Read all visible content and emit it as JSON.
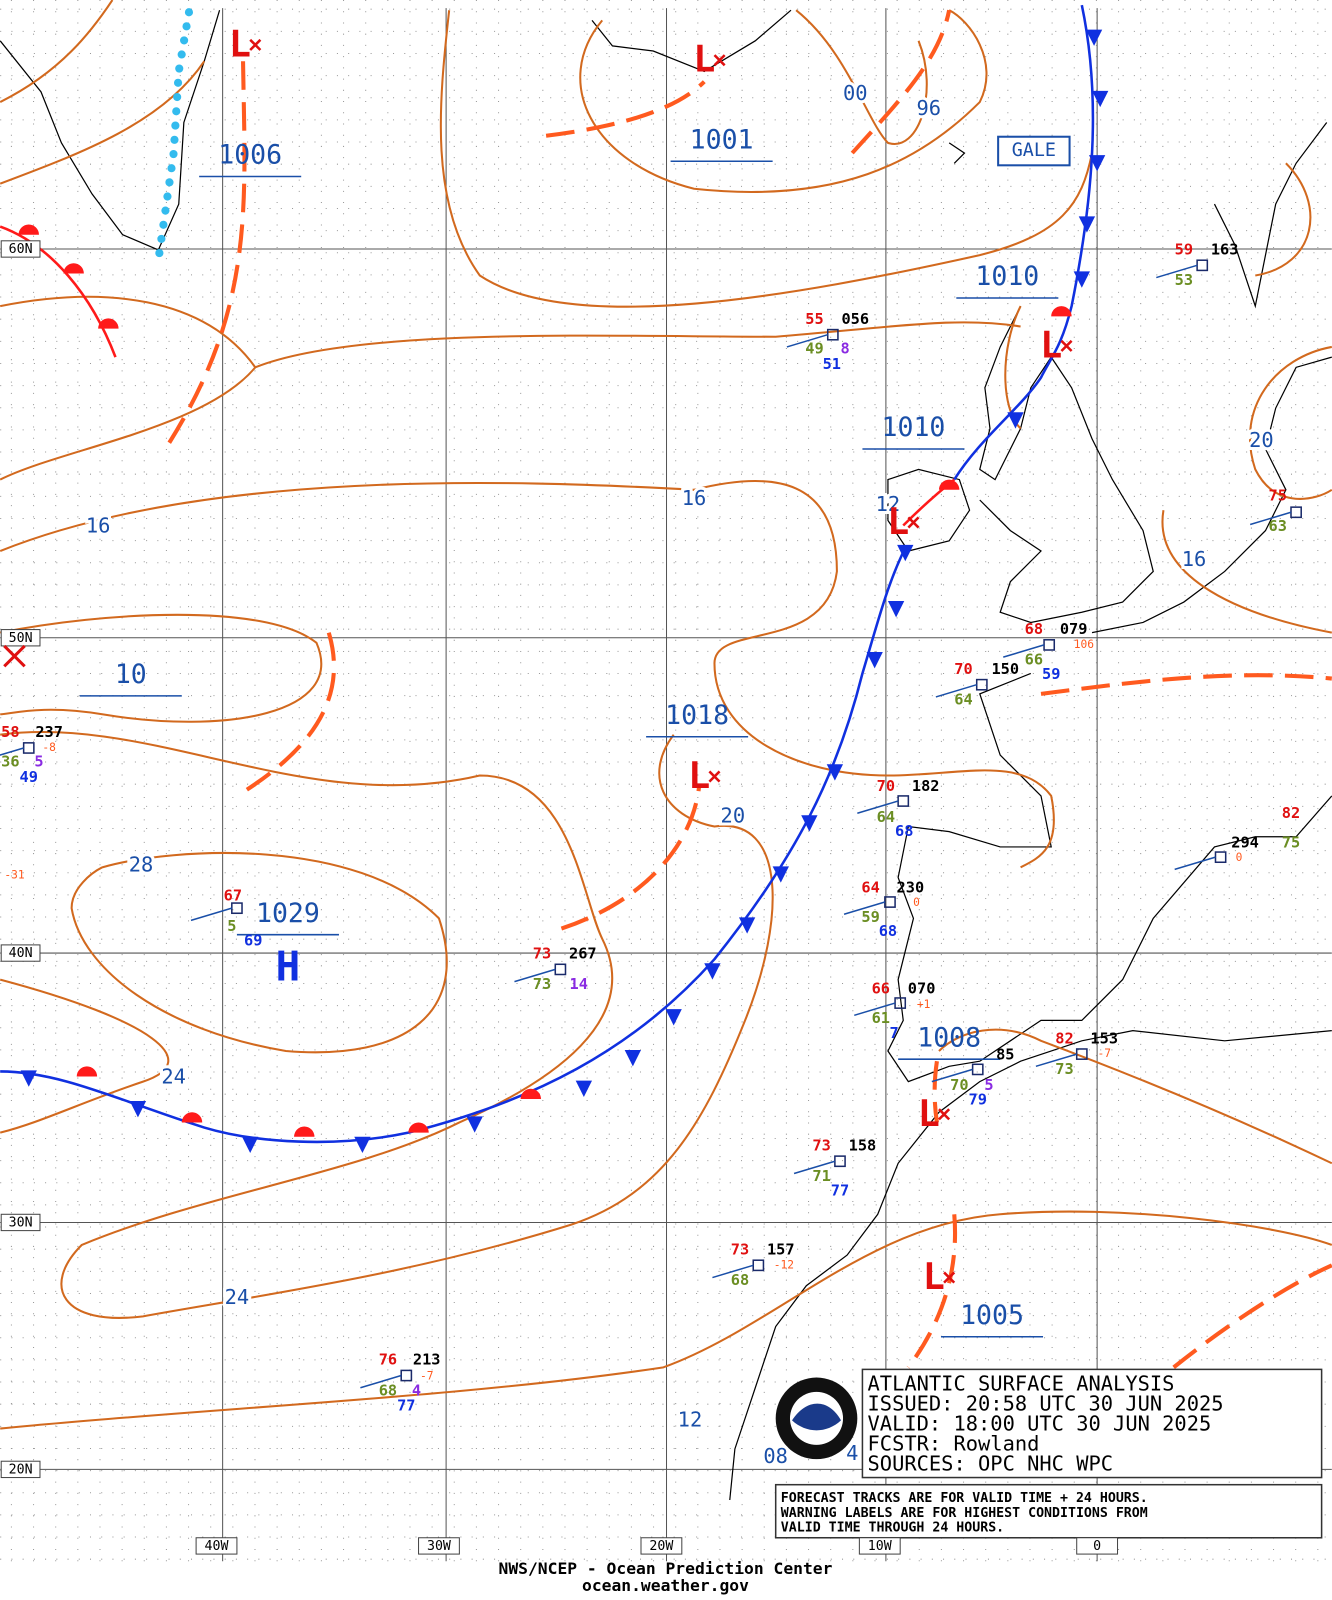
{
  "title_box": {
    "lines": [
      "ATLANTIC SURFACE ANALYSIS",
      "ISSUED: 20:58 UTC 30 JUN 2025",
      "VALID:  18:00 UTC 30 JUN 2025",
      "FCSTR:  Rowland",
      "SOURCES: OPC NHC WPC"
    ]
  },
  "note_box": {
    "lines": [
      "FORECAST TRACKS ARE FOR VALID TIME + 24 HOURS.",
      "WARNING LABELS ARE FOR HIGHEST CONDITIONS FROM",
      "VALID TIME THROUGH 24 HOURS."
    ]
  },
  "footer": {
    "center": "NWS/NCEP - Ocean Prediction Center",
    "url": "ocean.weather.gov"
  },
  "lat_labels": [
    "60N",
    "50N",
    "40N",
    "30N",
    "20N"
  ],
  "lon_labels": [
    "40W",
    "30W",
    "20W",
    "10W",
    "0"
  ],
  "pressure_centers": [
    "1006",
    "1001",
    "1010",
    "1010",
    "1018",
    "10",
    "1029",
    "1008",
    "1005"
  ],
  "isobar_labels": [
    "00",
    "96",
    "16",
    "16",
    "12",
    "20",
    "16",
    "20",
    "28",
    "24",
    "24",
    "12",
    "08",
    "4"
  ],
  "warning": "GALE",
  "high_symbol": "H",
  "low_symbol": "L",
  "stations": [
    {
      "texts": [
        "55",
        "056",
        "49",
        "8",
        "51"
      ]
    },
    {
      "texts": [
        "59",
        "163",
        "53"
      ]
    },
    {
      "texts": [
        "75",
        "63"
      ]
    },
    {
      "texts": [
        "68",
        "079",
        "106",
        "66",
        "59"
      ]
    },
    {
      "texts": [
        "70",
        "150",
        "64"
      ]
    },
    {
      "texts": [
        "58",
        "237",
        "-8",
        "36",
        "5",
        "49",
        "-31"
      ]
    },
    {
      "texts": [
        "70",
        "182",
        "64",
        "68"
      ]
    },
    {
      "texts": [
        "64",
        "230",
        "0",
        "59",
        "68"
      ]
    },
    {
      "texts": [
        "66",
        "070",
        "+1",
        "61",
        "7"
      ]
    },
    {
      "texts": [
        "73",
        "267",
        "73",
        "14"
      ]
    },
    {
      "texts": [
        "67",
        "5",
        "69"
      ]
    },
    {
      "texts": [
        "85",
        "70",
        "5",
        "79"
      ]
    },
    {
      "texts": [
        "82",
        "153",
        "-7",
        "73"
      ]
    },
    {
      "texts": [
        "73",
        "158",
        "71",
        "77"
      ]
    },
    {
      "texts": [
        "73",
        "157",
        "-12",
        "68"
      ]
    },
    {
      "texts": [
        "76",
        "213",
        "-7",
        "68",
        "4",
        "77"
      ]
    },
    {
      "texts": [
        "294",
        "0",
        "82",
        "75"
      ]
    }
  ]
}
